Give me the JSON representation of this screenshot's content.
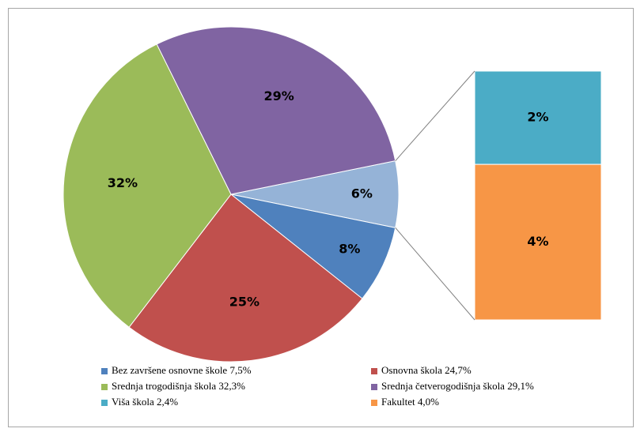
{
  "chart_data": {
    "type": "pie-of-bar",
    "categories": [
      "Bez završene osnovne škole 7,5%",
      "Osnovna škola 24,7%",
      "Srednja trogodišnja škola 32,3%",
      "Srednja četverogodišnja škola 29,1%",
      "Viša škola 2,4%",
      "Fakultet 4,0%"
    ],
    "values": [
      7.5,
      24.7,
      32.3,
      29.1,
      2.4,
      4.0
    ],
    "value_labels": [
      "8%",
      "25%",
      "32%",
      "29%",
      "2%",
      "4%"
    ],
    "colors": [
      "#4f81bd",
      "#c0504d",
      "#9bbb59",
      "#8064a2",
      "#4bacc6",
      "#f79646"
    ],
    "bar_indices": [
      4,
      5
    ],
    "other": {
      "value": 6.4,
      "value_label": "6%",
      "color": "#95b3d7"
    }
  }
}
